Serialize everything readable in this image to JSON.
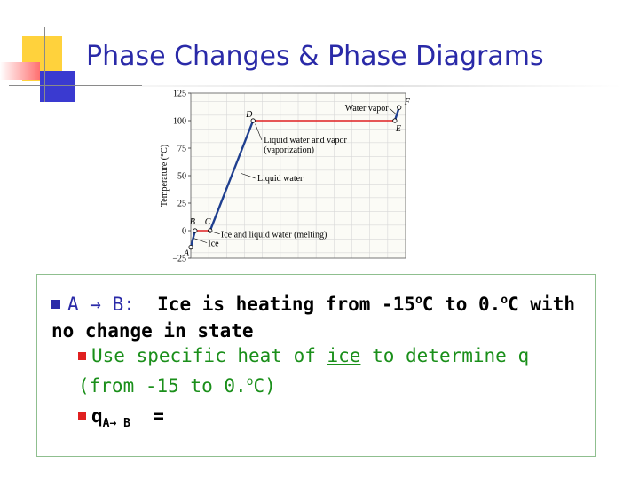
{
  "slide": {
    "title": "Phase Changes & Phase Diagrams",
    "colors": {
      "title": "#2a2aa8",
      "bullet1": "#2a2aa8",
      "bullet2": "#e02020",
      "green_text": "#1a8f1a",
      "box_border": "#8fbf8f"
    }
  },
  "content": {
    "bullet1": {
      "label": "A → B:",
      "text_a": "Ice is heating from -15",
      "sup1": "o",
      "text_b": "C to 0.",
      "sup2": "o",
      "text_c": "C with no change in state"
    },
    "bullet2": {
      "text_a": "Use specific heat of ",
      "underlined": "ice",
      "text_b": " to determine q (from -15 to 0.",
      "sup": "o",
      "text_c": "C)"
    },
    "bullet3": {
      "q": "q",
      "sub": "A→ B",
      "eq": "="
    }
  },
  "chart_data": {
    "type": "line",
    "ylabel": "Temperature (°C)",
    "xlabel": "",
    "ylim": [
      -25,
      125
    ],
    "yticks": [
      125,
      100,
      75,
      50,
      25,
      0,
      -25
    ],
    "ytick_labels": [
      "125",
      "100",
      "75",
      "50",
      "25",
      "0",
      "−25"
    ],
    "grid": true,
    "series": [
      {
        "segment": "A-B",
        "x": [
          0,
          0.02
        ],
        "y": [
          -15,
          0
        ],
        "color": "#1f3f8f"
      },
      {
        "segment": "B-C",
        "x": [
          0.02,
          0.09
        ],
        "y": [
          0,
          0
        ],
        "color": "#e02020"
      },
      {
        "segment": "C-D",
        "x": [
          0.09,
          0.29
        ],
        "y": [
          0,
          100
        ],
        "color": "#1f3f8f"
      },
      {
        "segment": "D-E",
        "x": [
          0.29,
          0.95
        ],
        "y": [
          100,
          100
        ],
        "color": "#e02020"
      },
      {
        "segment": "E-F",
        "x": [
          0.95,
          0.97
        ],
        "y": [
          100,
          112
        ],
        "color": "#1f3f8f"
      }
    ],
    "points": [
      {
        "label": "A",
        "x": 0,
        "y": -15
      },
      {
        "label": "B",
        "x": 0.02,
        "y": 0
      },
      {
        "label": "C",
        "x": 0.09,
        "y": 0
      },
      {
        "label": "D",
        "x": 0.29,
        "y": 100
      },
      {
        "label": "E",
        "x": 0.95,
        "y": 100
      },
      {
        "label": "F",
        "x": 0.97,
        "y": 112
      }
    ],
    "annotations": [
      {
        "text": "Water vapor",
        "target": "E-F"
      },
      {
        "text": "Liquid water and vapor",
        "text2": "(vaporization)",
        "target": "D-E"
      },
      {
        "text": "Liquid water",
        "target": "C-D"
      },
      {
        "text": "Ice and liquid water (melting)",
        "target": "B-C"
      },
      {
        "text": "Ice",
        "target": "A-B"
      }
    ]
  }
}
